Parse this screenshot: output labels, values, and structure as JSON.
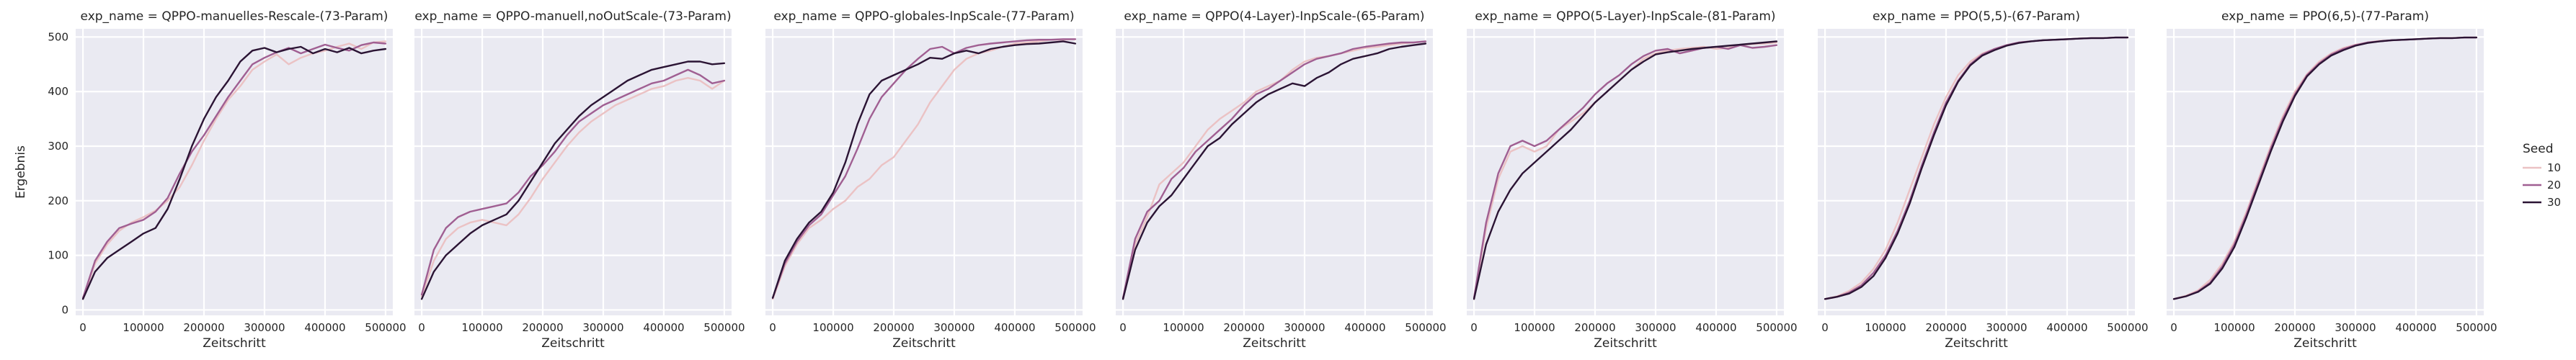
{
  "chart_data": {
    "type": "line",
    "facet_title_prefix": "exp_name = ",
    "xlabel": "Zeitschritt",
    "ylabel": "Ergebnis",
    "xlim": [
      -12000,
      512000
    ],
    "ylim": [
      -10,
      515
    ],
    "xticks": [
      0,
      100000,
      200000,
      300000,
      400000,
      500000
    ],
    "xtick_labels": [
      "0",
      "100000",
      "200000",
      "300000",
      "400000",
      "500000"
    ],
    "yticks": [
      0,
      100,
      200,
      300,
      400,
      500
    ],
    "ytick_labels": [
      "0",
      "100",
      "200",
      "300",
      "400",
      "500"
    ],
    "grid": true,
    "legend": {
      "title": "Seed",
      "placement": "right",
      "entries": [
        {
          "label": "10",
          "color": "#ebc2c4"
        },
        {
          "label": "20",
          "color": "#a05f92"
        },
        {
          "label": "30",
          "color": "#2b1434"
        }
      ]
    },
    "x": [
      0,
      20000,
      40000,
      60000,
      80000,
      100000,
      120000,
      140000,
      160000,
      180000,
      200000,
      220000,
      240000,
      260000,
      280000,
      300000,
      320000,
      340000,
      360000,
      380000,
      400000,
      420000,
      440000,
      460000,
      480000,
      500000
    ],
    "panels": [
      {
        "exp_name": "QPPO-manuelles-Rescale-(73-Param)",
        "series": [
          {
            "name": "10",
            "values": [
              20,
              85,
              120,
              145,
              160,
              170,
              182,
              200,
              225,
              265,
              310,
              350,
              385,
              410,
              440,
              455,
              468,
              450,
              462,
              470,
              475,
              482,
              488,
              478,
              490,
              492
            ]
          },
          {
            "name": "20",
            "values": [
              22,
              90,
              125,
              150,
              158,
              165,
              180,
              205,
              250,
              290,
              320,
              355,
              390,
              420,
              450,
              462,
              472,
              480,
              470,
              478,
              486,
              480,
              475,
              485,
              490,
              488
            ]
          },
          {
            "name": "30",
            "values": [
              20,
              70,
              95,
              110,
              125,
              140,
              150,
              185,
              240,
              300,
              350,
              390,
              420,
              455,
              475,
              480,
              472,
              478,
              482,
              470,
              478,
              472,
              480,
              470,
              475,
              478
            ]
          }
        ]
      },
      {
        "exp_name": "QPPO-manuell,noOutScale-(73-Param)",
        "series": [
          {
            "name": "10",
            "values": [
              25,
              90,
              130,
              150,
              160,
              165,
              160,
              155,
              175,
              205,
              240,
              270,
              300,
              325,
              345,
              360,
              375,
              385,
              395,
              405,
              410,
              420,
              425,
              420,
              405,
              420
            ]
          },
          {
            "name": "20",
            "values": [
              28,
              110,
              150,
              170,
              180,
              185,
              190,
              195,
              215,
              245,
              265,
              290,
              320,
              345,
              360,
              375,
              385,
              395,
              405,
              415,
              420,
              430,
              440,
              430,
              415,
              420
            ]
          },
          {
            "name": "30",
            "values": [
              20,
              70,
              100,
              120,
              140,
              155,
              165,
              175,
              200,
              235,
              270,
              305,
              330,
              355,
              375,
              390,
              405,
              420,
              430,
              440,
              445,
              450,
              455,
              455,
              450,
              452
            ]
          }
        ]
      },
      {
        "exp_name": "QPPO-globales-InpScale-(77-Param)",
        "series": [
          {
            "name": "10",
            "values": [
              20,
              80,
              120,
              150,
              165,
              185,
              200,
              225,
              240,
              265,
              280,
              310,
              340,
              380,
              410,
              440,
              460,
              470,
              475,
              482,
              488,
              490,
              492,
              495,
              495,
              496
            ]
          },
          {
            "name": "20",
            "values": [
              22,
              85,
              125,
              155,
              175,
              210,
              245,
              295,
              350,
              390,
              415,
              440,
              460,
              478,
              482,
              470,
              480,
              485,
              488,
              490,
              492,
              494,
              495,
              495,
              496,
              496
            ]
          },
          {
            "name": "30",
            "values": [
              22,
              90,
              130,
              160,
              180,
              215,
              270,
              340,
              395,
              420,
              430,
              440,
              450,
              462,
              460,
              470,
              475,
              470,
              478,
              482,
              485,
              487,
              488,
              490,
              492,
              488
            ]
          }
        ]
      },
      {
        "exp_name": "QPPO(4-Layer)-InpScale-(65-Param)",
        "series": [
          {
            "name": "10",
            "values": [
              20,
              120,
              170,
              230,
              250,
              270,
              300,
              330,
              350,
              365,
              380,
              400,
              410,
              420,
              440,
              455,
              462,
              465,
              470,
              475,
              480,
              482,
              485,
              488,
              490,
              492
            ]
          },
          {
            "name": "20",
            "values": [
              22,
              130,
              180,
              200,
              240,
              260,
              290,
              310,
              330,
              350,
              375,
              395,
              405,
              420,
              435,
              450,
              460,
              465,
              470,
              478,
              482,
              485,
              488,
              490,
              490,
              492
            ]
          },
          {
            "name": "30",
            "values": [
              20,
              110,
              160,
              190,
              210,
              240,
              270,
              300,
              315,
              340,
              360,
              380,
              395,
              405,
              415,
              410,
              425,
              435,
              450,
              460,
              465,
              470,
              478,
              482,
              485,
              488
            ]
          }
        ]
      },
      {
        "exp_name": "QPPO(5-Layer)-InpScale-(81-Param)",
        "series": [
          {
            "name": "10",
            "values": [
              20,
              150,
              240,
              290,
              300,
              290,
              300,
              330,
              345,
              360,
              380,
              400,
              420,
              440,
              460,
              470,
              475,
              478,
              480,
              482,
              478,
              480,
              485,
              487,
              488,
              490
            ]
          },
          {
            "name": "20",
            "values": [
              22,
              160,
              250,
              300,
              310,
              300,
              310,
              330,
              350,
              370,
              395,
              415,
              430,
              450,
              465,
              475,
              478,
              470,
              475,
              480,
              482,
              478,
              485,
              480,
              482,
              485
            ]
          },
          {
            "name": "30",
            "values": [
              20,
              120,
              180,
              220,
              250,
              270,
              290,
              310,
              330,
              355,
              380,
              400,
              420,
              440,
              455,
              468,
              472,
              475,
              478,
              480,
              482,
              484,
              486,
              488,
              490,
              492
            ]
          }
        ]
      },
      {
        "exp_name": "PPO(5,5)-(67-Param)",
        "series": [
          {
            "name": "10",
            "values": [
              20,
              25,
              35,
              50,
              75,
              110,
              160,
              220,
              280,
              340,
              390,
              430,
              455,
              470,
              478,
              485,
              490,
              492,
              494,
              495,
              496,
              497,
              498,
              498,
              499,
              499
            ]
          },
          {
            "name": "20",
            "values": [
              20,
              24,
              32,
              45,
              68,
              100,
              145,
              200,
              265,
              325,
              380,
              420,
              450,
              468,
              478,
              485,
              490,
              492,
              494,
              495,
              496,
              497,
              498,
              498,
              499,
              499
            ]
          },
          {
            "name": "30",
            "values": [
              20,
              24,
              30,
              42,
              62,
              95,
              140,
              195,
              260,
              320,
              375,
              418,
              448,
              466,
              476,
              484,
              489,
              492,
              494,
              495,
              496,
              497,
              498,
              498,
              499,
              499
            ]
          }
        ]
      },
      {
        "exp_name": "PPO(6,5)-(77-Param)",
        "series": [
          {
            "name": "10",
            "values": [
              20,
              26,
              36,
              55,
              85,
              125,
              180,
              240,
              300,
              355,
              400,
              432,
              455,
              470,
              480,
              486,
              490,
              493,
              494,
              495,
              496,
              497,
              498,
              498,
              499,
              499
            ]
          },
          {
            "name": "20",
            "values": [
              20,
              25,
              34,
              50,
              80,
              120,
              175,
              235,
              295,
              350,
              395,
              430,
              452,
              468,
              478,
              485,
              490,
              492,
              494,
              495,
              496,
              497,
              498,
              498,
              499,
              499
            ]
          },
          {
            "name": "30",
            "values": [
              20,
              25,
              33,
              48,
              76,
              115,
              170,
              230,
              290,
              345,
              392,
              428,
              450,
              466,
              476,
              484,
              489,
              492,
              494,
              495,
              496,
              497,
              498,
              498,
              499,
              499
            ]
          }
        ]
      }
    ]
  }
}
